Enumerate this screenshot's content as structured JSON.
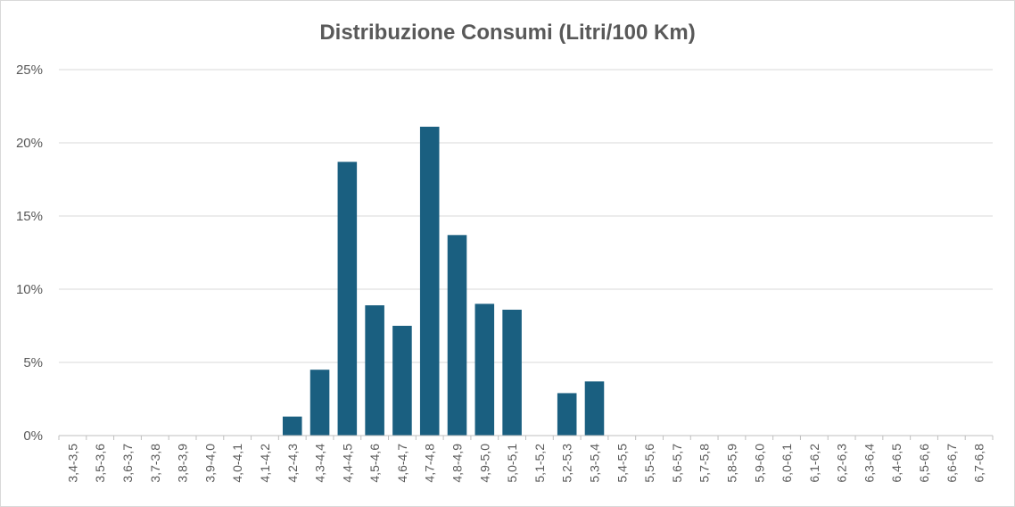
{
  "chart_data": {
    "type": "bar",
    "title": "Distribuzione Consumi (Litri/100 Km)",
    "xlabel": "",
    "ylabel": "",
    "ylim": [
      0,
      0.25
    ],
    "y_ticks": [
      {
        "value": 0,
        "label": "0%"
      },
      {
        "value": 0.05,
        "label": "5%"
      },
      {
        "value": 0.1,
        "label": "10%"
      },
      {
        "value": 0.15,
        "label": "15%"
      },
      {
        "value": 0.2,
        "label": "20%"
      },
      {
        "value": 0.25,
        "label": "25%"
      }
    ],
    "grid": true,
    "legend": "none",
    "bar_color": "#1a5f80",
    "categories": [
      "3,4-3,5",
      "3,5-3,6",
      "3,6-3,7",
      "3,7-3,8",
      "3,8-3,9",
      "3,9-4,0",
      "4,0-4,1",
      "4,1-4,2",
      "4,2-4,3",
      "4,3-4,4",
      "4,4-4,5",
      "4,5-4,6",
      "4,6-4,7",
      "4,7-4,8",
      "4,8-4,9",
      "4,9-5,0",
      "5,0-5,1",
      "5,1-5,2",
      "5,2-5,3",
      "5,3-5,4",
      "5,4-5,5",
      "5,5-5,6",
      "5,6-5,7",
      "5,7-5,8",
      "5,8-5,9",
      "5,9-6,0",
      "6,0-6,1",
      "6,1-6,2",
      "6,2-6,3",
      "6,3-6,4",
      "6,4-6,5",
      "6,5-6,6",
      "6,6-6,7",
      "6,7-6,8"
    ],
    "values": [
      0,
      0,
      0,
      0,
      0,
      0,
      0,
      0,
      0.013,
      0.045,
      0.187,
      0.089,
      0.075,
      0.211,
      0.137,
      0.09,
      0.086,
      0,
      0.029,
      0.037,
      0,
      0,
      0,
      0,
      0,
      0,
      0,
      0,
      0,
      0,
      0,
      0,
      0,
      0
    ]
  }
}
